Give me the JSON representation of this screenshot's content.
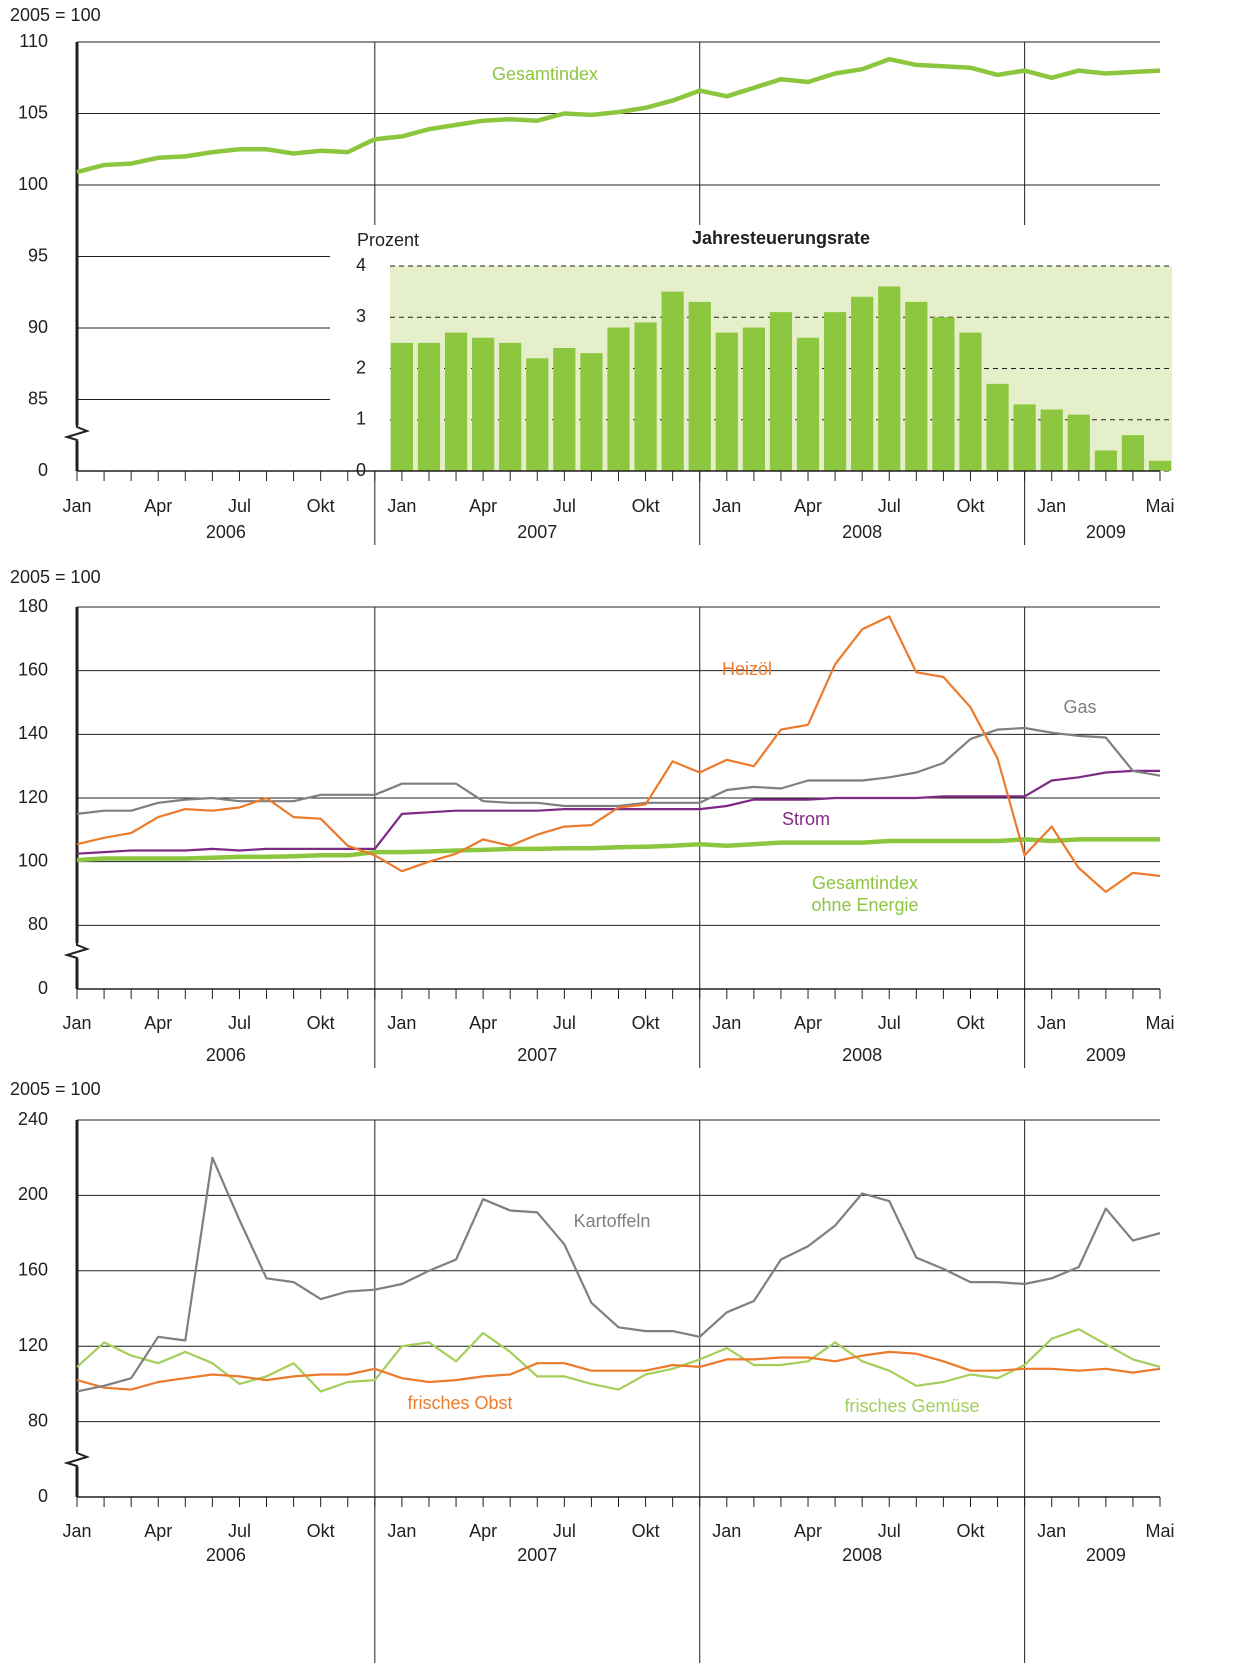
{
  "chart_data": [
    {
      "type": "line",
      "ylabel": "2005 = 100",
      "categories": [
        "Jan",
        null,
        null,
        "Apr",
        null,
        null,
        "Jul",
        null,
        null,
        "Okt",
        null,
        null,
        "Jan",
        null,
        null,
        "Apr",
        null,
        null,
        "Jul",
        null,
        null,
        "Okt",
        null,
        null,
        "Jan",
        null,
        null,
        "Apr",
        null,
        null,
        "Jul",
        null,
        null,
        "Okt",
        null,
        null,
        "Jan",
        null,
        null,
        null,
        "Mai"
      ],
      "years": [
        "2006",
        "2007",
        "2008",
        "2009"
      ],
      "ylim": [
        80,
        110
      ],
      "yticks": [
        0,
        85,
        90,
        95,
        100,
        105,
        110
      ],
      "axis_break": true,
      "grid": true,
      "y2label": "Prozent",
      "y2lim": [
        0,
        4
      ],
      "y2ticks": [
        0,
        1,
        2,
        3,
        4
      ],
      "series": [
        {
          "name": "Gesamtindex",
          "color": "#8cc63f",
          "values": [
            100.9,
            101.4,
            101.5,
            101.9,
            102.0,
            102.3,
            102.5,
            102.5,
            102.2,
            102.4,
            102.3,
            103.2,
            103.4,
            103.9,
            104.2,
            104.5,
            104.6,
            104.5,
            105.0,
            104.9,
            105.1,
            105.4,
            105.9,
            106.6,
            106.2,
            106.8,
            107.4,
            107.2,
            107.8,
            108.1,
            108.8,
            108.4,
            108.3,
            108.2,
            107.7,
            108.0,
            107.5,
            108.0,
            107.8,
            107.9,
            108.0
          ]
        },
        {
          "name": "Jahresteuerungsrate",
          "type": "bar",
          "axis": "y2",
          "color": "#8dc63f",
          "values": [
            null,
            null,
            null,
            null,
            null,
            null,
            null,
            null,
            null,
            null,
            null,
            null,
            2.5,
            2.5,
            2.7,
            2.6,
            2.5,
            2.2,
            2.4,
            2.3,
            2.8,
            2.9,
            3.5,
            3.3,
            2.7,
            2.8,
            3.1,
            2.6,
            3.1,
            3.4,
            3.6,
            3.3,
            3.0,
            2.7,
            1.7,
            1.3,
            1.2,
            1.1,
            0.4,
            0.7,
            0.2
          ]
        }
      ]
    },
    {
      "type": "line",
      "ylabel": "2005 = 100",
      "categories": [
        "Jan",
        null,
        null,
        "Apr",
        null,
        null,
        "Jul",
        null,
        null,
        "Okt",
        null,
        null,
        "Jan",
        null,
        null,
        "Apr",
        null,
        null,
        "Jul",
        null,
        null,
        "Okt",
        null,
        null,
        "Jan",
        null,
        null,
        "Apr",
        null,
        null,
        "Jul",
        null,
        null,
        "Okt",
        null,
        null,
        "Jan",
        null,
        null,
        null,
        "Mai"
      ],
      "years": [
        "2006",
        "2007",
        "2008",
        "2009"
      ],
      "ylim": [
        60,
        180
      ],
      "yticks": [
        0,
        80,
        100,
        120,
        140,
        160,
        180
      ],
      "axis_break": true,
      "grid": true,
      "series": [
        {
          "name": "Heizöl",
          "color": "#ec7a2b",
          "values": [
            105.5,
            107.5,
            109,
            114,
            116.5,
            116,
            117,
            120,
            114,
            113.5,
            105,
            102,
            97,
            100,
            102.5,
            107,
            105,
            108.5,
            111,
            111.5,
            117,
            118,
            131.5,
            128,
            132,
            130,
            141.5,
            143,
            162,
            173,
            177,
            159.5,
            158,
            148.5,
            132.5,
            102,
            111,
            98,
            90.5,
            96.5,
            95.5
          ]
        },
        {
          "name": "Gas",
          "color": "#7f7f7f",
          "values": [
            115,
            116,
            116,
            118.5,
            119.5,
            120,
            119,
            119,
            119,
            121,
            121,
            121,
            124.5,
            124.5,
            124.5,
            119,
            118.5,
            118.5,
            117.5,
            117.5,
            117.5,
            118.5,
            118.5,
            118.5,
            122.5,
            123.5,
            123,
            125.5,
            125.5,
            125.5,
            126.5,
            128,
            131,
            138.5,
            141.5,
            142,
            140.5,
            139.5,
            139,
            128.5,
            127
          ]
        },
        {
          "name": "Strom",
          "color": "#7d2a86",
          "values": [
            102.5,
            103,
            103.5,
            103.5,
            103.5,
            104,
            103.5,
            104,
            104,
            104,
            104,
            104,
            115,
            115.5,
            116,
            116,
            116,
            116,
            116.5,
            116.5,
            116.5,
            116.5,
            116.5,
            116.5,
            117.5,
            119.5,
            119.5,
            119.5,
            120,
            120,
            120,
            120,
            120.5,
            120.5,
            120.5,
            120.5,
            125.5,
            126.5,
            128,
            128.5,
            128.5
          ]
        },
        {
          "name": "Gesamtindex ohne Energie",
          "color": "#8cc63f",
          "values": [
            100.5,
            101,
            101,
            101,
            101,
            101.2,
            101.5,
            101.5,
            101.7,
            102,
            102,
            103,
            103,
            103.2,
            103.5,
            103.7,
            104,
            104,
            104.2,
            104.2,
            104.5,
            104.7,
            105,
            105.5,
            105,
            105.5,
            106,
            106,
            106,
            106,
            106.5,
            106.5,
            106.5,
            106.5,
            106.5,
            107,
            106.5,
            107,
            107,
            107,
            107
          ]
        }
      ]
    },
    {
      "type": "line",
      "ylabel": "2005 = 100",
      "categories": [
        "Jan",
        null,
        null,
        "Apr",
        null,
        null,
        "Jul",
        null,
        null,
        "Okt",
        null,
        null,
        "Jan",
        null,
        null,
        "Apr",
        null,
        null,
        "Jul",
        null,
        null,
        "Okt",
        null,
        null,
        "Jan",
        null,
        null,
        "Apr",
        null,
        null,
        "Jul",
        null,
        null,
        "Okt",
        null,
        null,
        "Jan",
        null,
        null,
        null,
        "Mai"
      ],
      "years": [
        "2006",
        "2007",
        "2008",
        "2009"
      ],
      "ylim": [
        40,
        240
      ],
      "yticks": [
        0,
        80,
        120,
        160,
        200,
        240
      ],
      "axis_break": true,
      "grid": true,
      "series": [
        {
          "name": "Kartoffeln",
          "color": "#7f7f7f",
          "values": [
            96,
            99,
            103,
            125,
            123,
            220,
            187,
            156,
            154,
            145,
            149,
            150,
            153,
            160,
            166,
            198,
            192,
            191,
            174,
            143,
            130,
            128,
            128,
            125,
            138,
            144,
            166,
            173,
            184,
            201,
            197,
            167,
            161,
            154,
            154,
            153,
            156,
            162,
            193,
            176,
            180
          ]
        },
        {
          "name": "frisches Obst",
          "color": "#ec7a2b",
          "values": [
            102,
            98,
            97,
            101,
            103,
            105,
            104,
            102,
            104,
            105,
            105,
            108,
            103,
            101,
            102,
            104,
            105,
            111,
            111,
            107,
            107,
            107,
            110,
            109,
            113,
            113,
            114,
            114,
            112,
            115,
            117,
            116,
            112,
            107,
            107,
            108,
            108,
            107,
            108,
            106,
            108
          ]
        },
        {
          "name": "frisches Gemüse",
          "color": "#a3cf5a",
          "values": [
            109,
            122,
            115,
            111,
            117,
            111,
            100,
            104,
            111,
            96,
            101,
            102,
            120,
            122,
            112,
            127,
            117,
            104,
            104,
            100,
            97,
            105,
            108,
            113,
            119,
            110,
            110,
            112,
            122,
            112,
            107,
            99,
            101,
            105,
            103,
            110,
            124,
            129,
            121,
            113,
            109
          ]
        }
      ]
    }
  ]
}
